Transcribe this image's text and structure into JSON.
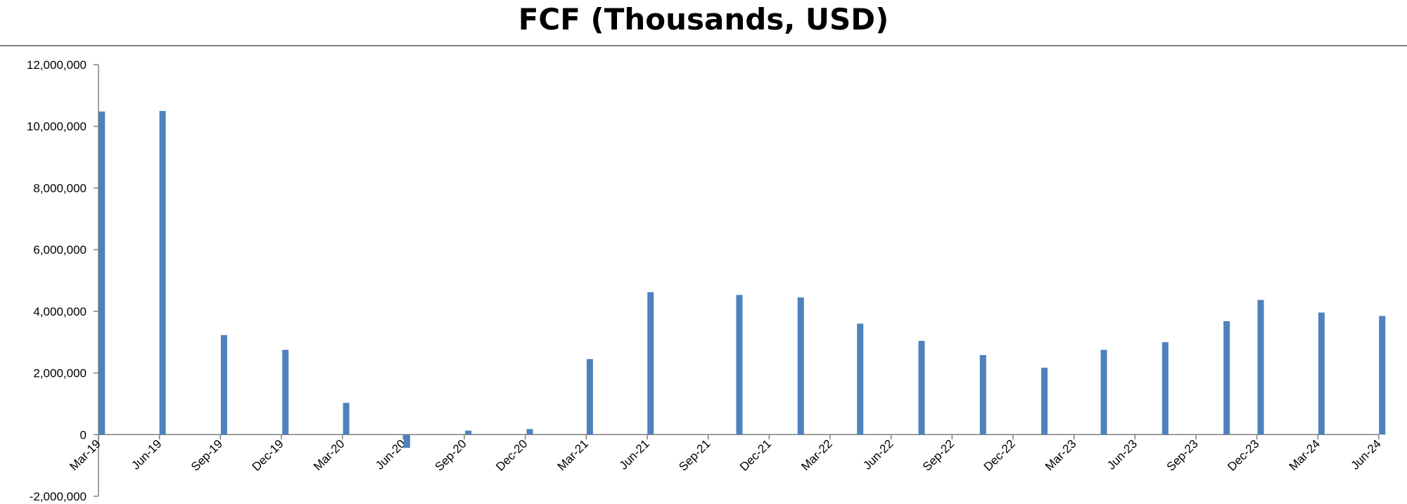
{
  "chart_data": {
    "type": "bar",
    "title": "FCF (Thousands, USD)",
    "xlabel": "",
    "ylabel": "",
    "ylim": [
      -2000000,
      12000000
    ],
    "y_ticks": [
      "12,000,000",
      "10,000,000",
      "8,000,000",
      "6,000,000",
      "4,000,000",
      "2,000,000",
      "0",
      "-2,000,000"
    ],
    "y_tick_values": [
      12000000,
      10000000,
      8000000,
      6000000,
      4000000,
      2000000,
      0,
      -2000000
    ],
    "x_tick_labels": [
      "Mar-19",
      "Jun-19",
      "Sep-19",
      "Dec-19",
      "Mar-20",
      "Jun-20",
      "Sep-20",
      "Dec-20",
      "Mar-21",
      "Jun-21",
      "Sep-21",
      "Dec-21",
      "Mar-22",
      "Jun-22",
      "Sep-22",
      "Dec-22",
      "Mar-23",
      "Jun-23",
      "Sep-23",
      "Dec-23",
      "Mar-24",
      "Jun-24"
    ],
    "x_start": "2019-03-31",
    "x_end": "2024-06-30",
    "bars": [
      {
        "date": "2019-04-05",
        "value": 10480000
      },
      {
        "date": "2019-07-05",
        "value": 10500000
      },
      {
        "date": "2019-10-05",
        "value": 3230000
      },
      {
        "date": "2020-01-05",
        "value": 2750000
      },
      {
        "date": "2020-04-05",
        "value": 1030000
      },
      {
        "date": "2020-07-05",
        "value": -430000
      },
      {
        "date": "2020-10-05",
        "value": 130000
      },
      {
        "date": "2021-01-05",
        "value": 180000
      },
      {
        "date": "2021-04-05",
        "value": 2450000
      },
      {
        "date": "2021-07-05",
        "value": 4620000
      },
      {
        "date": "2021-11-15",
        "value": 4530000
      },
      {
        "date": "2022-02-15",
        "value": 4450000
      },
      {
        "date": "2022-05-15",
        "value": 3600000
      },
      {
        "date": "2022-08-15",
        "value": 3040000
      },
      {
        "date": "2022-11-15",
        "value": 2580000
      },
      {
        "date": "2023-02-15",
        "value": 2170000
      },
      {
        "date": "2023-05-15",
        "value": 2750000
      },
      {
        "date": "2023-08-15",
        "value": 3000000
      },
      {
        "date": "2023-11-15",
        "value": 3680000
      },
      {
        "date": "2024-01-05",
        "value": 4370000
      },
      {
        "date": "2024-04-05",
        "value": 3960000
      },
      {
        "date": "2024-07-05",
        "value": 3850000
      }
    ],
    "grid": false,
    "legend": "none",
    "bar_color": "#4F81BD",
    "axis_color": "#808080"
  }
}
